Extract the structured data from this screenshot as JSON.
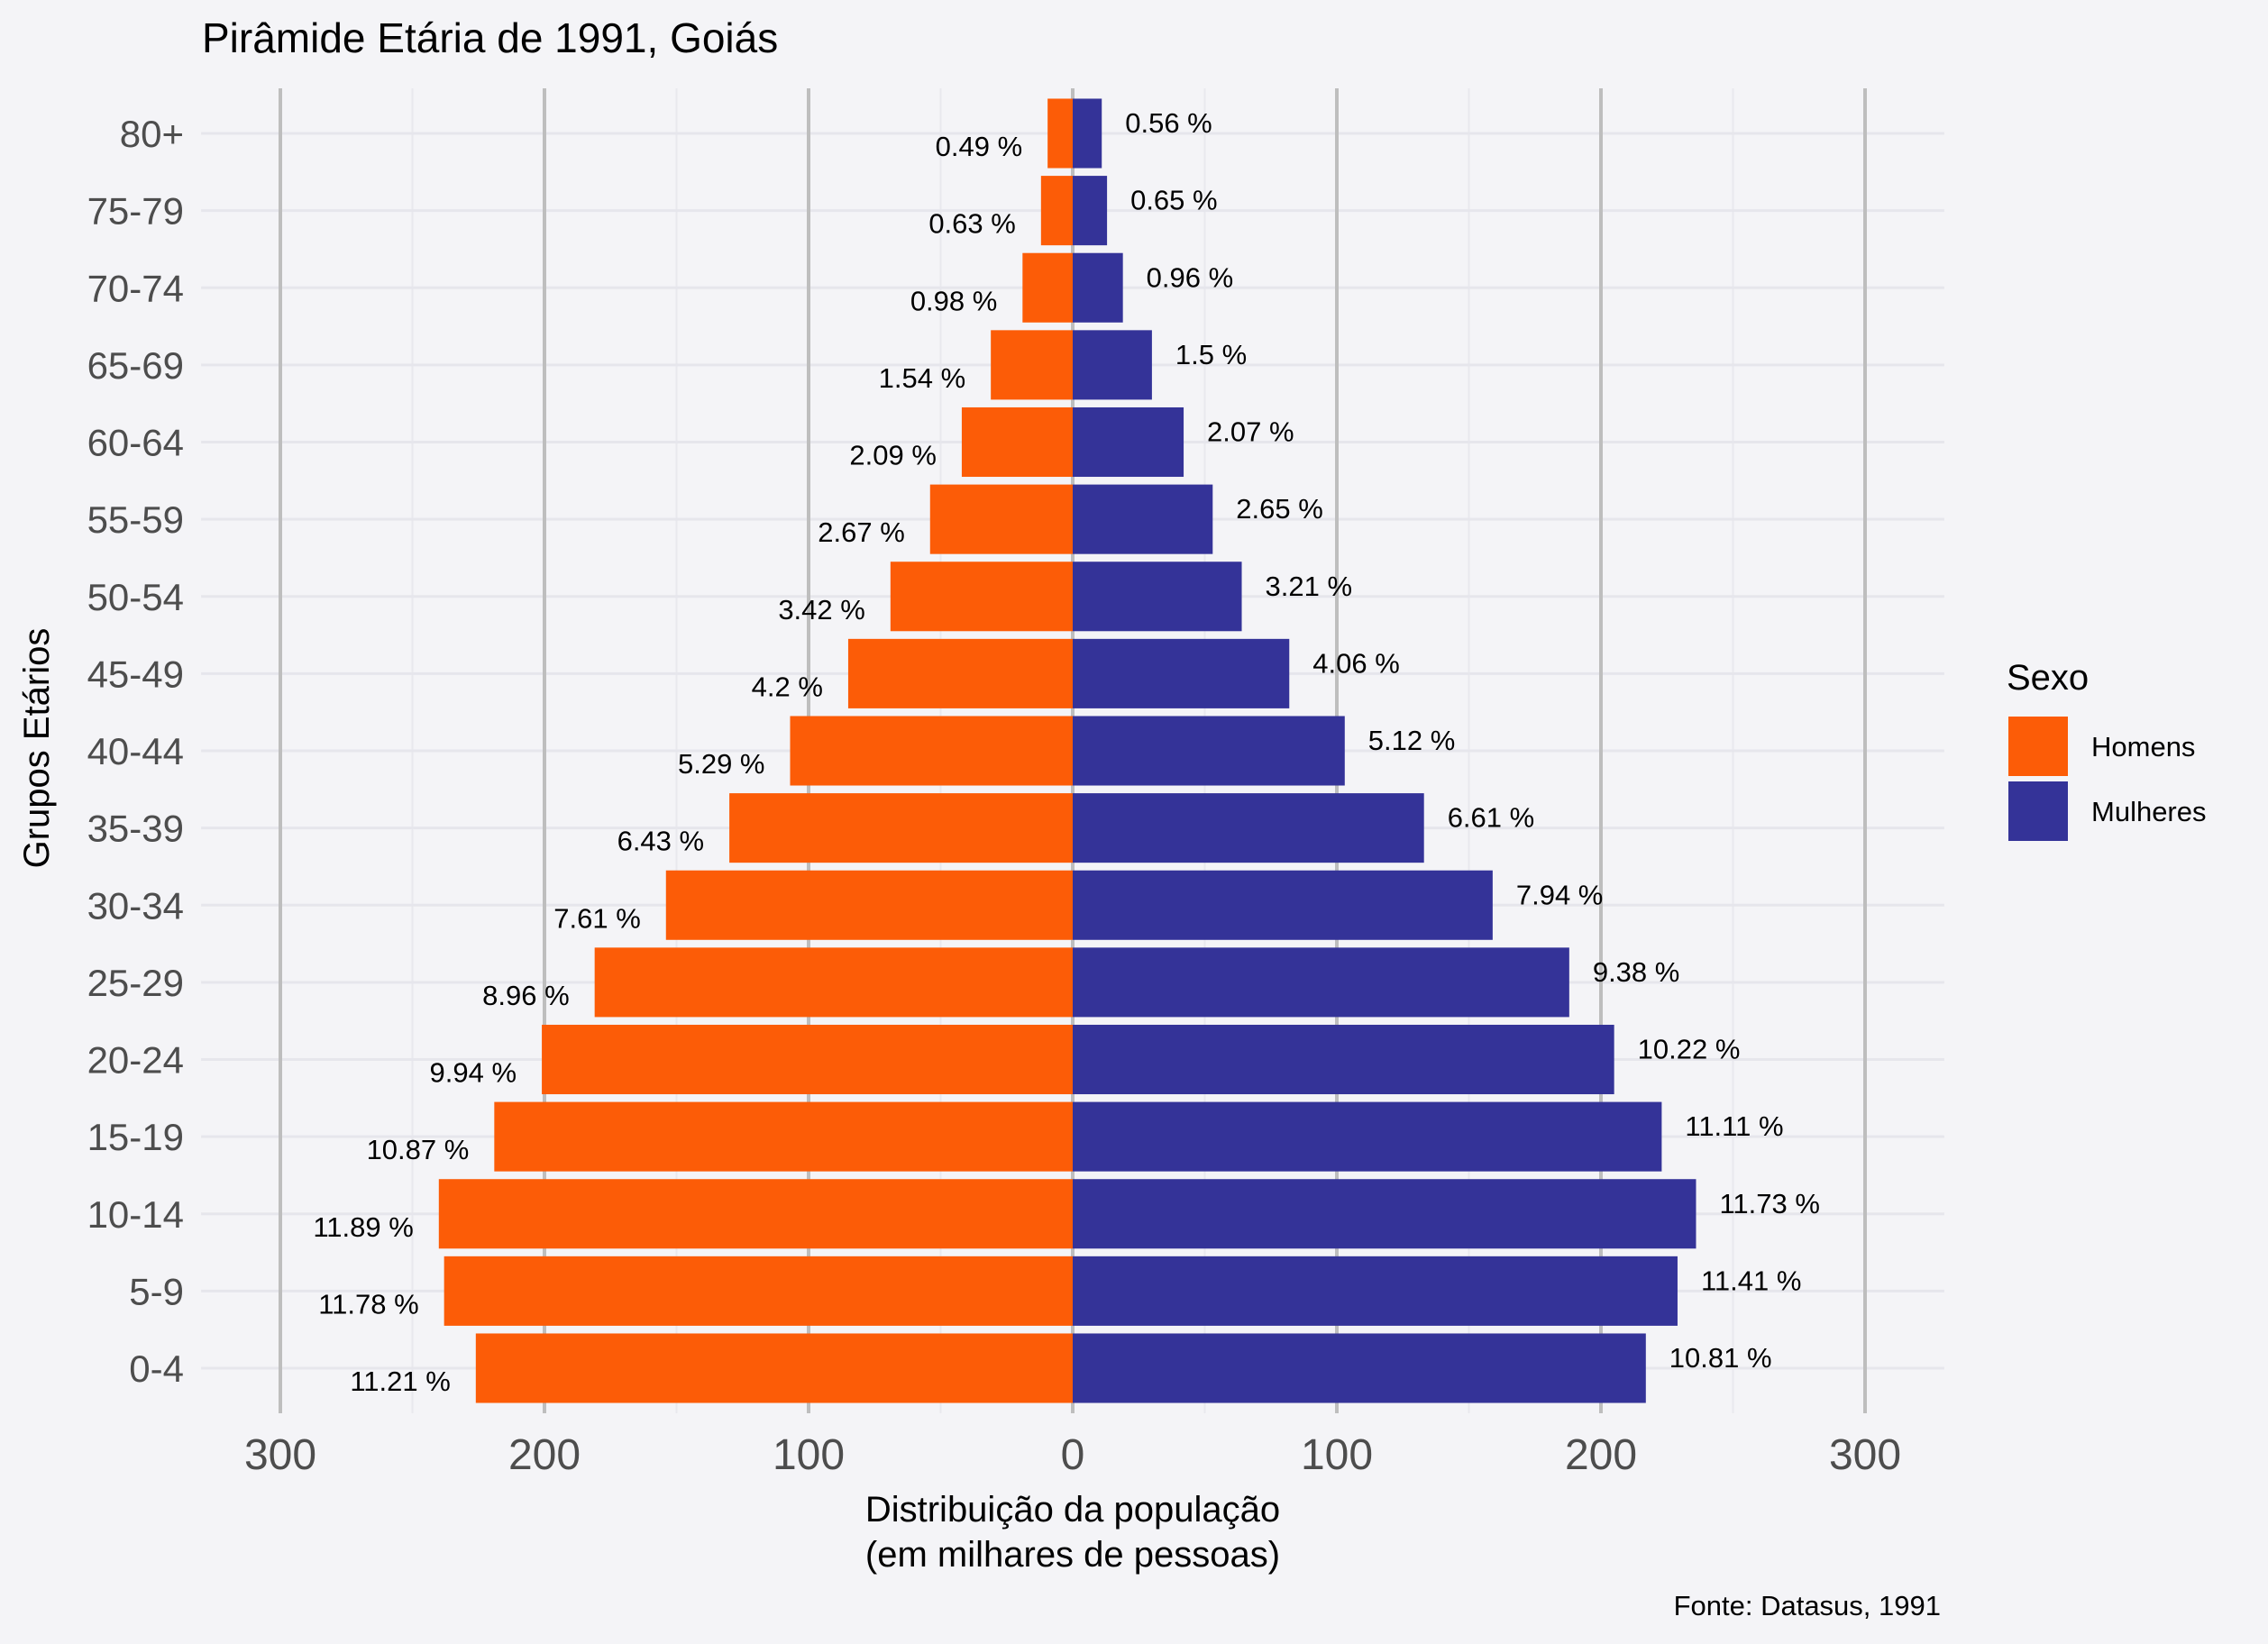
{
  "chart_data": {
    "type": "bar",
    "orientation": "horizontal",
    "title": "Pirâmide Etária de 1991, Goiás",
    "xlabel": "Distribuição da população\n(em milhares de pessoas)",
    "ylabel": "Grupos Etários",
    "caption": "Fonte: Datasus, 1991",
    "xlim": [
      -330,
      330
    ],
    "x_ticks": [
      -300,
      -200,
      -100,
      0,
      100,
      200,
      300
    ],
    "x_tick_labels": [
      "300",
      "200",
      "100",
      "0",
      "100",
      "200",
      "300"
    ],
    "categories": [
      "0-4",
      "5-9",
      "10-14",
      "15-19",
      "20-24",
      "25-29",
      "30-34",
      "35-39",
      "40-44",
      "45-49",
      "50-54",
      "55-59",
      "60-64",
      "65-69",
      "70-74",
      "75-79",
      "80+"
    ],
    "legend_title": "Sexo",
    "legend_position": "right",
    "grid": true,
    "series": [
      {
        "name": "Homens",
        "color": "#fc5c07",
        "values": [
          226,
          238,
          240,
          219,
          201,
          181,
          154,
          130,
          107,
          85,
          69,
          54,
          42,
          31,
          19,
          12,
          9.5
        ],
        "labels": [
          "11.21 %",
          "11.78 %",
          "11.89 %",
          "10.87 %",
          "9.94 %",
          "8.96 %",
          "7.61 %",
          "6.43 %",
          "5.29 %",
          "4.2 %",
          "3.42 %",
          "2.67 %",
          "2.09 %",
          "1.54 %",
          "0.98 %",
          "0.63 %",
          "0.49 %"
        ]
      },
      {
        "name": "Mulheres",
        "color": "#343398",
        "values": [
          217,
          229,
          236,
          223,
          205,
          188,
          159,
          133,
          103,
          82,
          64,
          53,
          42,
          30,
          19,
          13,
          11
        ],
        "labels": [
          "10.81 %",
          "11.41 %",
          "11.73 %",
          "11.11 %",
          "10.22 %",
          "9.38 %",
          "7.94 %",
          "6.61 %",
          "5.12 %",
          "4.06 %",
          "3.21 %",
          "2.65 %",
          "2.07 %",
          "1.5 %",
          "0.96 %",
          "0.65 %",
          "0.56 %"
        ]
      }
    ]
  }
}
